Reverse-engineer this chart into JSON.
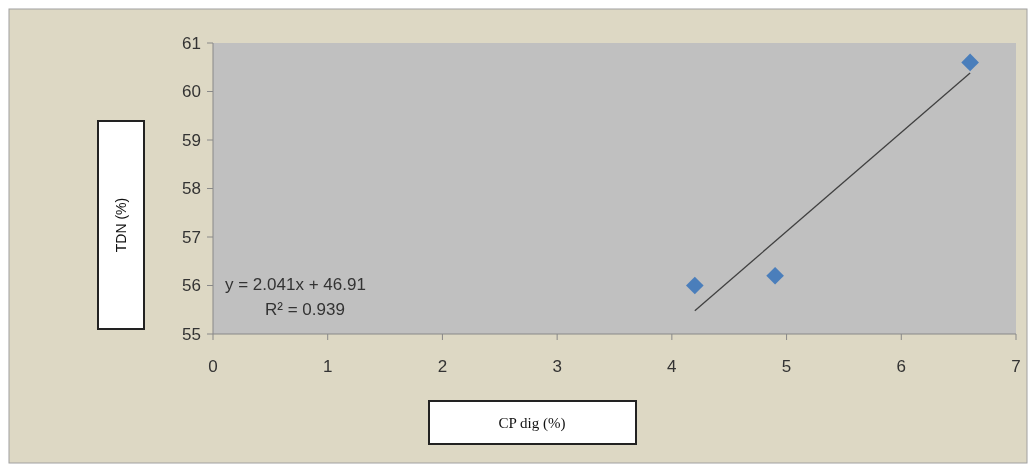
{
  "chart_data": {
    "type": "scatter",
    "xlabel": "CP dig (%)",
    "ylabel": "TDN (%)",
    "xlim": [
      0,
      7
    ],
    "xticks": [
      0,
      1,
      2,
      3,
      4,
      5,
      6,
      7
    ],
    "ylim": [
      55,
      61
    ],
    "yticks": [
      55,
      56,
      57,
      58,
      59,
      60,
      61
    ],
    "annotations": [
      "y = 2.041x + 46.91",
      "R² = 0.939"
    ],
    "series": [
      {
        "color": "#4a7ebb",
        "marker": "diamond",
        "x": [
          4.2,
          4.9,
          6.6
        ],
        "values": [
          56.0,
          56.2,
          60.6
        ]
      },
      {
        "type": "line",
        "color": "#404040",
        "x": [
          4.2,
          6.6
        ],
        "values": [
          55.48,
          60.38
        ]
      }
    ]
  }
}
